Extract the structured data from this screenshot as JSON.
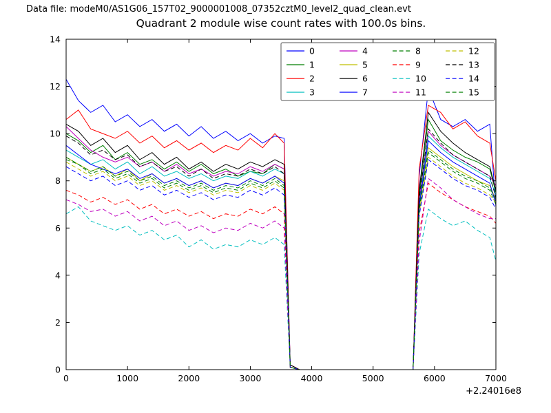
{
  "header": {
    "data_file_label": "Data file: modeM0/AS1G06_157T02_9000001008_07352cztM0_level2_quad_clean.evt"
  },
  "chart_data": {
    "type": "line",
    "title": "Quadrant 2 module wise count rates with 100.0s bins.",
    "xlabel": "",
    "ylabel": "",
    "x_offset_label": "+2.24016e8",
    "xlim": [
      0,
      7000
    ],
    "ylim": [
      0,
      14
    ],
    "xticks": [
      0,
      1000,
      2000,
      3000,
      4000,
      5000,
      6000,
      7000
    ],
    "yticks": [
      0,
      2,
      4,
      6,
      8,
      10,
      12,
      14
    ],
    "grid": false,
    "legend_position": "upper center",
    "x": [
      0,
      200,
      400,
      600,
      800,
      1000,
      1200,
      1400,
      1600,
      1800,
      2000,
      2200,
      2400,
      2600,
      2800,
      3000,
      3200,
      3400,
      3550,
      3650,
      3800,
      4200,
      4600,
      5000,
      5400,
      5650,
      5750,
      5900,
      6100,
      6300,
      6500,
      6700,
      6900,
      7000
    ],
    "series": [
      {
        "name": "0",
        "color": "#0000ff",
        "style": "solid",
        "values": [
          12.3,
          11.4,
          10.9,
          11.2,
          10.5,
          10.8,
          10.3,
          10.6,
          10.1,
          10.4,
          9.9,
          10.3,
          9.8,
          10.1,
          9.7,
          10.0,
          9.6,
          9.9,
          9.8,
          0.2,
          0,
          0,
          0,
          0,
          0,
          0,
          8.2,
          11.9,
          10.6,
          10.3,
          10.6,
          10.1,
          10.4,
          6.9
        ]
      },
      {
        "name": "1",
        "color": "#007f00",
        "style": "solid",
        "values": [
          10.0,
          9.7,
          9.2,
          9.5,
          8.9,
          9.2,
          8.7,
          8.9,
          8.5,
          8.8,
          8.4,
          8.7,
          8.3,
          8.5,
          8.2,
          8.4,
          8.3,
          8.7,
          8.5,
          0.1,
          0,
          0,
          0,
          0,
          0,
          0,
          7.4,
          10.6,
          9.7,
          9.3,
          9.0,
          8.8,
          8.5,
          7.5
        ]
      },
      {
        "name": "2",
        "color": "#ff0000",
        "style": "solid",
        "values": [
          10.6,
          11.0,
          10.2,
          10.0,
          9.8,
          10.1,
          9.6,
          9.9,
          9.4,
          9.7,
          9.3,
          9.6,
          9.2,
          9.5,
          9.3,
          9.8,
          9.4,
          10.0,
          9.6,
          0.2,
          0,
          0,
          0,
          0,
          0,
          0,
          8.5,
          11.2,
          10.9,
          10.2,
          10.5,
          9.9,
          9.6,
          8.0
        ]
      },
      {
        "name": "3",
        "color": "#00bfbf",
        "style": "solid",
        "values": [
          9.3,
          9.0,
          8.7,
          8.9,
          8.5,
          8.8,
          8.3,
          8.6,
          8.2,
          8.4,
          8.1,
          8.3,
          8.0,
          8.2,
          8.1,
          8.4,
          8.2,
          8.5,
          8.3,
          0.1,
          0,
          0,
          0,
          0,
          0,
          0,
          7.0,
          9.9,
          9.4,
          9.0,
          8.7,
          8.4,
          8.1,
          7.4
        ]
      },
      {
        "name": "4",
        "color": "#bf00bf",
        "style": "solid",
        "values": [
          10.3,
          9.8,
          9.3,
          9.0,
          8.8,
          9.0,
          8.6,
          8.8,
          8.4,
          8.7,
          8.3,
          8.5,
          8.2,
          8.4,
          8.3,
          8.6,
          8.4,
          8.7,
          8.5,
          0.1,
          0,
          0,
          0,
          0,
          0,
          0,
          7.2,
          10.1,
          9.5,
          9.1,
          8.8,
          8.5,
          8.2,
          7.8
        ]
      },
      {
        "name": "5",
        "color": "#bfbf00",
        "style": "solid",
        "values": [
          9.0,
          8.7,
          8.4,
          8.6,
          8.2,
          8.5,
          8.0,
          8.3,
          7.9,
          8.1,
          7.8,
          8.0,
          7.7,
          7.9,
          7.8,
          8.1,
          7.9,
          8.2,
          8.0,
          0.1,
          0,
          0,
          0,
          0,
          0,
          0,
          6.8,
          9.4,
          9.0,
          8.6,
          8.3,
          8.0,
          7.8,
          7.2
        ]
      },
      {
        "name": "6",
        "color": "#000000",
        "style": "solid",
        "values": [
          10.4,
          10.1,
          9.5,
          9.8,
          9.2,
          9.5,
          8.9,
          9.2,
          8.7,
          9.0,
          8.5,
          8.8,
          8.4,
          8.7,
          8.5,
          8.8,
          8.6,
          8.9,
          8.7,
          0.2,
          0,
          0,
          0,
          0,
          0,
          0,
          7.6,
          10.9,
          10.1,
          9.6,
          9.2,
          8.9,
          8.6,
          7.6
        ]
      },
      {
        "name": "7",
        "color": "#0000ff",
        "style": "solid",
        "values": [
          9.5,
          9.1,
          8.7,
          8.5,
          8.3,
          8.5,
          8.1,
          8.3,
          7.9,
          8.1,
          7.8,
          8.0,
          7.7,
          7.9,
          7.8,
          8.1,
          7.9,
          8.2,
          7.9,
          0.1,
          0,
          0,
          0,
          0,
          0,
          0,
          6.9,
          9.7,
          9.2,
          8.8,
          8.5,
          8.2,
          7.9,
          7.0
        ]
      },
      {
        "name": "8",
        "color": "#007f00",
        "style": "dashed",
        "values": [
          9.0,
          8.7,
          8.3,
          8.5,
          8.1,
          8.3,
          7.9,
          8.1,
          7.7,
          7.9,
          7.6,
          7.8,
          7.5,
          7.7,
          7.6,
          7.9,
          7.7,
          8.0,
          7.7,
          0.1,
          0,
          0,
          0,
          0,
          0,
          0,
          6.7,
          9.2,
          8.8,
          8.4,
          8.1,
          7.9,
          7.6,
          7.0
        ]
      },
      {
        "name": "9",
        "color": "#ff0000",
        "style": "dashed",
        "values": [
          7.6,
          7.4,
          7.1,
          7.3,
          7.0,
          7.2,
          6.8,
          7.0,
          6.6,
          6.8,
          6.5,
          6.7,
          6.4,
          6.6,
          6.5,
          6.8,
          6.6,
          6.9,
          6.6,
          0.1,
          0,
          0,
          0,
          0,
          0,
          0,
          5.8,
          7.9,
          7.5,
          7.2,
          6.9,
          6.7,
          6.5,
          6.2
        ]
      },
      {
        "name": "10",
        "color": "#00bfbf",
        "style": "dashed",
        "values": [
          6.6,
          6.9,
          6.3,
          6.1,
          5.9,
          6.1,
          5.7,
          5.9,
          5.5,
          5.7,
          5.2,
          5.5,
          5.1,
          5.3,
          5.2,
          5.5,
          5.3,
          5.6,
          5.3,
          0.1,
          0,
          0,
          0,
          0,
          0,
          0,
          4.9,
          6.8,
          6.4,
          6.1,
          6.3,
          5.9,
          5.6,
          4.6
        ]
      },
      {
        "name": "11",
        "color": "#bf00bf",
        "style": "dashed",
        "values": [
          7.2,
          7.0,
          6.7,
          6.8,
          6.5,
          6.7,
          6.3,
          6.5,
          6.1,
          6.3,
          5.9,
          6.1,
          5.8,
          6.0,
          5.9,
          6.2,
          6.0,
          6.3,
          6.0,
          0.1,
          0,
          0,
          0,
          0,
          0,
          0,
          5.4,
          8.1,
          7.7,
          7.2,
          6.9,
          6.6,
          6.4,
          6.4
        ]
      },
      {
        "name": "12",
        "color": "#bfbf00",
        "style": "dashed",
        "values": [
          8.8,
          8.5,
          8.2,
          8.4,
          8.0,
          8.2,
          7.8,
          8.0,
          7.6,
          7.8,
          7.5,
          7.7,
          7.4,
          7.6,
          7.5,
          7.8,
          7.6,
          7.9,
          7.6,
          0.1,
          0,
          0,
          0,
          0,
          0,
          0,
          6.6,
          9.0,
          8.6,
          8.2,
          7.9,
          7.7,
          7.4,
          7.1
        ]
      },
      {
        "name": "13",
        "color": "#000000",
        "style": "dashed",
        "values": [
          9.9,
          9.6,
          9.1,
          9.3,
          8.9,
          9.1,
          8.6,
          8.8,
          8.4,
          8.6,
          8.2,
          8.5,
          8.1,
          8.3,
          8.2,
          8.5,
          8.3,
          8.6,
          8.3,
          0.1,
          0,
          0,
          0,
          0,
          0,
          0,
          7.2,
          10.2,
          9.6,
          9.1,
          8.8,
          8.5,
          8.2,
          7.3
        ]
      },
      {
        "name": "14",
        "color": "#0000ff",
        "style": "dashed",
        "values": [
          8.6,
          8.3,
          8.0,
          8.2,
          7.8,
          8.0,
          7.6,
          7.8,
          7.4,
          7.6,
          7.3,
          7.5,
          7.2,
          7.4,
          7.3,
          7.6,
          7.4,
          7.7,
          7.4,
          0.1,
          0,
          0,
          0,
          0,
          0,
          0,
          6.5,
          8.9,
          8.5,
          8.1,
          7.8,
          7.6,
          7.3,
          6.8
        ]
      },
      {
        "name": "15",
        "color": "#007f00",
        "style": "dashed",
        "values": [
          8.9,
          8.7,
          8.4,
          8.6,
          8.2,
          8.4,
          8.0,
          8.2,
          7.8,
          8.0,
          7.7,
          7.9,
          7.6,
          7.8,
          7.7,
          8.0,
          7.8,
          8.1,
          7.8,
          0.1,
          0,
          0,
          0,
          0,
          0,
          0,
          6.8,
          9.3,
          8.9,
          8.5,
          8.2,
          8.0,
          7.7,
          7.2
        ]
      }
    ]
  }
}
